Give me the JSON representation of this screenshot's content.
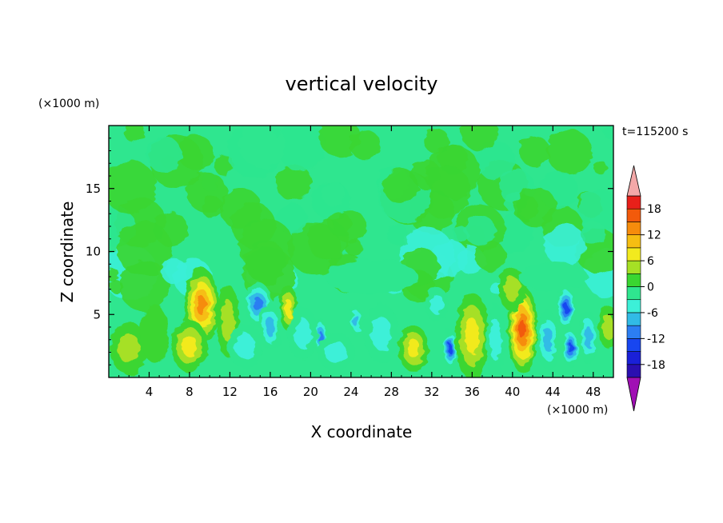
{
  "chart_data": {
    "type": "heatmap",
    "title": "vertical velocity",
    "xlabel": "X coordinate",
    "ylabel": "Z coordinate",
    "x_unit": "(×1000 m)",
    "y_unit": "(×1000 m)",
    "time_label": "t=115200 s",
    "xlim": [
      0,
      50
    ],
    "ylim": [
      0,
      20
    ],
    "x_ticks": [
      4,
      8,
      12,
      16,
      20,
      24,
      28,
      32,
      36,
      40,
      44,
      48
    ],
    "x_tick_labels": [
      "4",
      "8",
      "12",
      "16",
      "20",
      "24",
      "28",
      "32",
      "36",
      "40",
      "44",
      "48"
    ],
    "y_ticks": [
      5,
      10,
      15
    ],
    "y_tick_labels": [
      "5",
      "10",
      "15"
    ],
    "colorbar": {
      "levels": [
        -21,
        -18,
        -15,
        -12,
        -9,
        -6,
        -3,
        0,
        3,
        6,
        9,
        12,
        15,
        18,
        21
      ],
      "tick_values": [
        18,
        12,
        6,
        0,
        -6,
        -12,
        -18
      ],
      "tick_labels": [
        "18",
        "12",
        "6",
        "0",
        "-6",
        "-12",
        "-18"
      ],
      "colors": [
        "#6a1eaa",
        "#2a0fb0",
        "#1a20d8",
        "#1846f0",
        "#2c7ef2",
        "#31bbe6",
        "#3cf0d8",
        "#2fe68f",
        "#3ad631",
        "#a6e025",
        "#f2ea1e",
        "#f6be12",
        "#f68c0c",
        "#f25a0b",
        "#e8201a",
        "#c80c10"
      ],
      "under_color": "#a00fb4",
      "over_color": "#f3a8a8"
    },
    "features": [
      {
        "x": 2.0,
        "z": 2.3,
        "value": 5,
        "sx": 1.6,
        "sz": 1.8
      },
      {
        "x": 4.5,
        "z": 3.5,
        "value": 3,
        "sx": 1.2,
        "sz": 2.0
      },
      {
        "x": 9.2,
        "z": 5.7,
        "value": 14,
        "sx": 1.5,
        "sz": 2.6
      },
      {
        "x": 8.0,
        "z": 2.5,
        "value": 7,
        "sx": 1.6,
        "sz": 1.8
      },
      {
        "x": 11.8,
        "z": 4.5,
        "value": 4,
        "sx": 1.0,
        "sz": 2.5
      },
      {
        "x": 14.8,
        "z": 5.8,
        "value": -12,
        "sx": 1.2,
        "sz": 1.5
      },
      {
        "x": 16.0,
        "z": 4.0,
        "value": -8,
        "sx": 1.0,
        "sz": 1.6
      },
      {
        "x": 13.5,
        "z": 2.5,
        "value": -6,
        "sx": 1.5,
        "sz": 1.5
      },
      {
        "x": 17.8,
        "z": 5.5,
        "value": 8,
        "sx": 0.7,
        "sz": 1.6
      },
      {
        "x": 21.0,
        "z": 3.2,
        "value": -11,
        "sx": 0.5,
        "sz": 1.3
      },
      {
        "x": 19.2,
        "z": 3.5,
        "value": -5,
        "sx": 1.3,
        "sz": 1.8
      },
      {
        "x": 24.5,
        "z": 4.5,
        "value": -8,
        "sx": 0.6,
        "sz": 1.0
      },
      {
        "x": 22.5,
        "z": 2.0,
        "value": -4,
        "sx": 1.6,
        "sz": 1.3
      },
      {
        "x": 27.0,
        "z": 3.5,
        "value": -4,
        "sx": 1.5,
        "sz": 2.0
      },
      {
        "x": 30.2,
        "z": 2.3,
        "value": 7,
        "sx": 1.3,
        "sz": 1.6
      },
      {
        "x": 33.8,
        "z": 2.3,
        "value": -14,
        "sx": 0.6,
        "sz": 1.3
      },
      {
        "x": 32.5,
        "z": 5.8,
        "value": -5,
        "sx": 1.0,
        "sz": 1.2
      },
      {
        "x": 36.0,
        "z": 3.3,
        "value": 9,
        "sx": 1.5,
        "sz": 3.0
      },
      {
        "x": 38.3,
        "z": 3.0,
        "value": -6,
        "sx": 0.8,
        "sz": 2.5
      },
      {
        "x": 41.0,
        "z": 3.8,
        "value": 16,
        "sx": 1.3,
        "sz": 3.0
      },
      {
        "x": 40.0,
        "z": 7.0,
        "value": 5,
        "sx": 1.2,
        "sz": 1.5
      },
      {
        "x": 43.5,
        "z": 3.0,
        "value": -8,
        "sx": 1.0,
        "sz": 2.0
      },
      {
        "x": 45.3,
        "z": 5.5,
        "value": -15,
        "sx": 0.8,
        "sz": 1.5
      },
      {
        "x": 45.8,
        "z": 2.3,
        "value": -13,
        "sx": 0.7,
        "sz": 1.3
      },
      {
        "x": 47.5,
        "z": 3.2,
        "value": -7,
        "sx": 0.9,
        "sz": 1.8
      },
      {
        "x": 49.5,
        "z": 4.0,
        "value": 4,
        "sx": 0.8,
        "sz": 1.5
      },
      {
        "x": 26.0,
        "z": 8.0,
        "value": -3,
        "sx": 4.0,
        "sz": 1.2
      },
      {
        "x": 44.0,
        "z": 8.0,
        "value": -3,
        "sx": 3.0,
        "sz": 1.0
      }
    ]
  }
}
